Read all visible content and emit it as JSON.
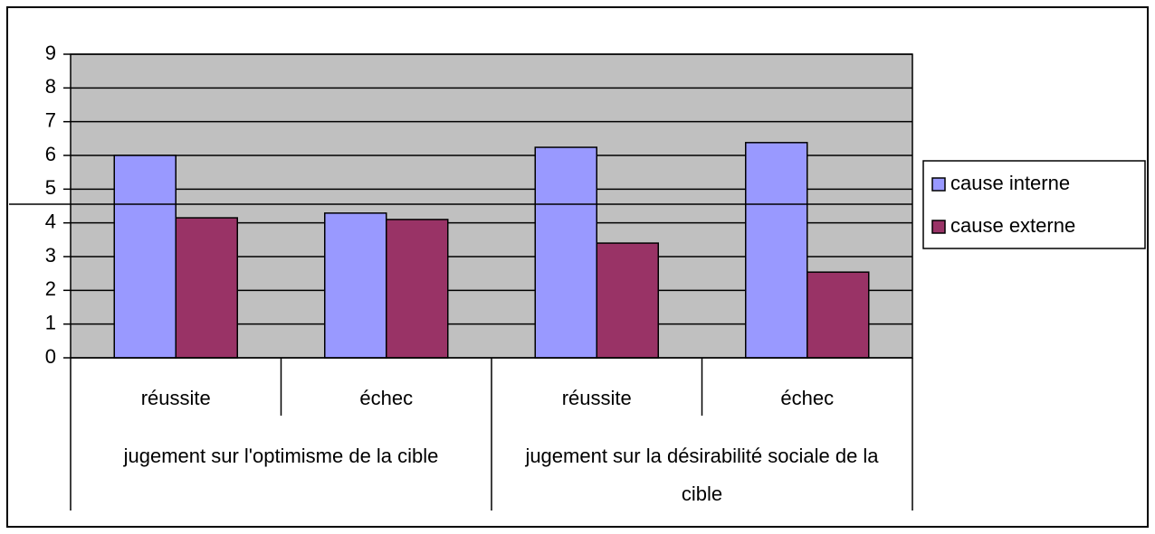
{
  "chart_data": {
    "type": "bar",
    "categories": [
      "réussite",
      "échec",
      "réussite",
      "échec"
    ],
    "group_labels": [
      "jugement sur l'optimisme de la cible",
      "jugement sur la désirabilité sociale de la cible"
    ],
    "series": [
      {
        "name": "cause interne",
        "color": "#9999ff",
        "values": [
          6.0,
          4.29,
          6.24,
          6.38
        ]
      },
      {
        "name": "cause externe",
        "color": "#993366",
        "values": [
          4.15,
          4.1,
          3.4,
          2.54
        ]
      }
    ],
    "ylim": [
      0,
      9
    ],
    "yticks": [
      0,
      1,
      2,
      3,
      4,
      5,
      6,
      7,
      8,
      9
    ],
    "grid": true,
    "legend": "right"
  }
}
